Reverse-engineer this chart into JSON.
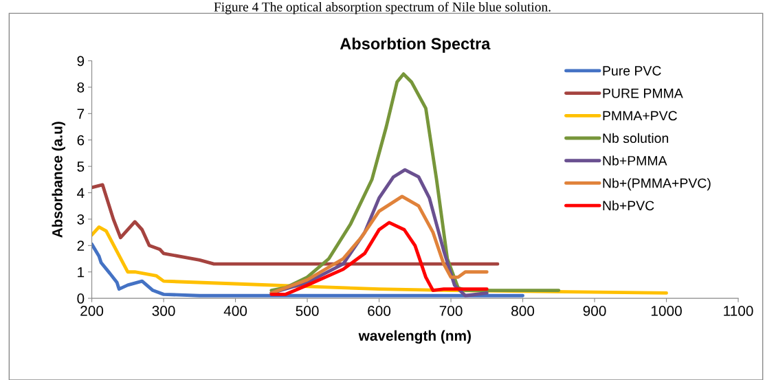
{
  "chart_data": {
    "type": "line",
    "title": "Absorbtion Spectra",
    "xlabel": "wavelength (nm)",
    "ylabel": "Absorbance (a.u)",
    "annotations": [
      "Figure 4 The optical absorption spectrum of Nile blue solution."
    ],
    "xlim": [
      200,
      1100
    ],
    "xticks": [
      200,
      300,
      400,
      500,
      600,
      700,
      800,
      900,
      1000,
      1100
    ],
    "ylim": [
      0,
      9
    ],
    "yticks": [
      0,
      1,
      2,
      3,
      4,
      5,
      6,
      7,
      8,
      9
    ],
    "grid": false,
    "legend": "right",
    "marker": "none",
    "line_style": "solid",
    "series": [
      {
        "name": "Pure PVC",
        "color": "#4472c4",
        "x": [
          200,
          210,
          213,
          225,
          235,
          238,
          250,
          270,
          285,
          300,
          350,
          800
        ],
        "values": [
          2.05,
          1.6,
          1.35,
          0.95,
          0.6,
          0.35,
          0.5,
          0.65,
          0.3,
          0.15,
          0.1,
          0.1
        ]
      },
      {
        "name": "PURE PMMA",
        "color": "#a5433f",
        "x": [
          200,
          215,
          230,
          240,
          260,
          270,
          280,
          295,
          300,
          350,
          370,
          400,
          765
        ],
        "values": [
          4.2,
          4.3,
          3.0,
          2.3,
          2.9,
          2.6,
          2.0,
          1.85,
          1.7,
          1.45,
          1.3,
          1.3,
          1.3
        ]
      },
      {
        "name": "PMMA+PVC",
        "color": "#ffc000",
        "x": [
          200,
          210,
          220,
          250,
          260,
          290,
          300,
          400,
          500,
          600,
          700,
          1000
        ],
        "values": [
          2.4,
          2.7,
          2.55,
          1.0,
          1.0,
          0.85,
          0.65,
          0.55,
          0.45,
          0.35,
          0.3,
          0.2
        ]
      },
      {
        "name": "Nb solution",
        "color": "#77963a",
        "x": [
          450,
          470,
          500,
          530,
          560,
          590,
          610,
          625,
          634,
          645,
          665,
          680,
          695,
          710,
          720,
          850
        ],
        "values": [
          0.3,
          0.4,
          0.8,
          1.5,
          2.8,
          4.5,
          6.5,
          8.2,
          8.5,
          8.2,
          7.2,
          4.5,
          1.5,
          0.4,
          0.3,
          0.3
        ]
      },
      {
        "name": "Nb+PMMA",
        "color": "#6a5090",
        "x": [
          450,
          500,
          550,
          580,
          600,
          620,
          636,
          655,
          670,
          690,
          705,
          720,
          750
        ],
        "values": [
          0.2,
          0.6,
          1.3,
          2.5,
          3.8,
          4.6,
          4.87,
          4.6,
          3.8,
          1.8,
          0.5,
          0.1,
          0.2
        ]
      },
      {
        "name": "Nb+(PMMA+PVC)",
        "color": "#e0823a",
        "x": [
          450,
          500,
          550,
          575,
          600,
          632,
          655,
          675,
          690,
          700,
          710,
          720,
          750
        ],
        "values": [
          0.2,
          0.7,
          1.5,
          2.3,
          3.3,
          3.86,
          3.5,
          2.5,
          1.3,
          0.8,
          0.8,
          1.0,
          1.0
        ]
      },
      {
        "name": "Nb+PVC",
        "color": "#ff0000",
        "x": [
          450,
          470,
          500,
          550,
          580,
          600,
          614,
          635,
          650,
          665,
          675,
          690,
          750
        ],
        "values": [
          0.15,
          0.15,
          0.5,
          1.1,
          1.7,
          2.6,
          2.87,
          2.6,
          2.0,
          0.8,
          0.3,
          0.35,
          0.35
        ]
      }
    ]
  }
}
